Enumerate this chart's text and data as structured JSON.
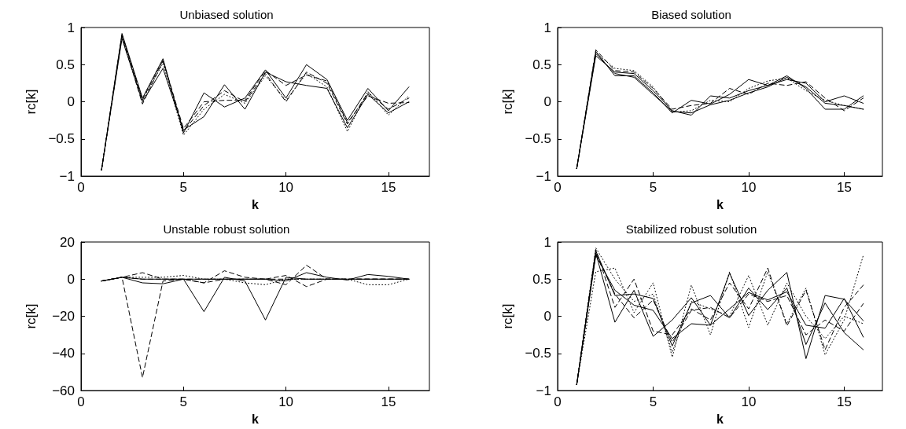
{
  "chart_data": [
    {
      "type": "line",
      "title": "Unbiased solution",
      "xlabel": "k",
      "ylabel": "rc[k]",
      "x": [
        1,
        2,
        3,
        4,
        5,
        6,
        7,
        8,
        9,
        10,
        11,
        12,
        13,
        14,
        15,
        16
      ],
      "xlim": [
        0,
        17
      ],
      "xticks": [
        0,
        5,
        10,
        15
      ],
      "ylim": [
        -1,
        1
      ],
      "yticks": [
        -1,
        -0.5,
        0,
        0.5,
        1
      ],
      "marker": "none",
      "grid": false,
      "series": [
        {
          "color": "#000000",
          "line_style": "solid",
          "values": [
            -0.92,
            0.92,
            0.05,
            0.58,
            -0.42,
            0.12,
            -0.07,
            0.05,
            0.43,
            0.05,
            0.5,
            0.3,
            -0.25,
            0.18,
            -0.12,
            0.2
          ]
        },
        {
          "color": "#000000",
          "line_style": "solid",
          "values": [
            -0.92,
            0.85,
            0.0,
            0.45,
            -0.38,
            -0.2,
            0.23,
            -0.1,
            0.4,
            0.27,
            0.22,
            0.18,
            -0.35,
            0.1,
            -0.15,
            0.0
          ]
        },
        {
          "color": "#000000",
          "line_style": "dashed",
          "values": [
            -0.92,
            0.88,
            -0.03,
            0.55,
            -0.4,
            -0.05,
            0.15,
            0.0,
            0.38,
            0.0,
            0.4,
            0.25,
            -0.3,
            0.12,
            -0.1,
            0.05
          ]
        },
        {
          "color": "#000000",
          "line_style": "dotted",
          "values": [
            -0.92,
            0.9,
            0.02,
            0.52,
            -0.45,
            -0.1,
            0.1,
            -0.02,
            0.35,
            0.02,
            0.38,
            0.2,
            -0.4,
            0.14,
            -0.18,
            0.08
          ]
        },
        {
          "color": "#000000",
          "line_style": "dashed",
          "values": [
            -0.92,
            0.9,
            0.03,
            0.56,
            -0.36,
            0.0,
            0.02,
            0.02,
            0.42,
            0.22,
            0.36,
            0.28,
            -0.28,
            0.08,
            -0.02,
            -0.01
          ]
        }
      ]
    },
    {
      "type": "line",
      "title": "Biased solution",
      "xlabel": "k",
      "ylabel": "rc[k]",
      "x": [
        1,
        2,
        3,
        4,
        5,
        6,
        7,
        8,
        9,
        10,
        11,
        12,
        13,
        14,
        15,
        16
      ],
      "xlim": [
        0,
        17
      ],
      "xticks": [
        0,
        5,
        10,
        15
      ],
      "ylim": [
        -1,
        1
      ],
      "yticks": [
        -1,
        -0.5,
        0,
        0.5,
        1
      ],
      "marker": "none",
      "grid": false,
      "series": [
        {
          "color": "#000000",
          "line_style": "solid",
          "values": [
            -0.9,
            0.68,
            0.35,
            0.35,
            0.12,
            -0.15,
            0.02,
            -0.03,
            0.1,
            0.3,
            0.22,
            0.35,
            0.18,
            -0.1,
            -0.1,
            0.08
          ]
        },
        {
          "color": "#000000",
          "line_style": "solid",
          "values": [
            -0.9,
            0.62,
            0.4,
            0.38,
            0.15,
            -0.12,
            -0.18,
            0.08,
            0.05,
            0.15,
            0.22,
            0.3,
            0.25,
            0.0,
            0.08,
            -0.02
          ]
        },
        {
          "color": "#000000",
          "line_style": "dashed",
          "values": [
            -0.9,
            0.7,
            0.42,
            0.4,
            0.18,
            -0.1,
            -0.05,
            -0.02,
            0.18,
            0.1,
            0.25,
            0.22,
            0.27,
            0.05,
            -0.12,
            0.05
          ]
        },
        {
          "color": "#000000",
          "line_style": "dotted",
          "values": [
            -0.9,
            0.66,
            0.45,
            0.42,
            0.2,
            -0.14,
            -0.12,
            0.02,
            0.0,
            0.18,
            0.28,
            0.32,
            0.15,
            0.02,
            -0.05,
            -0.1
          ]
        },
        {
          "color": "#000000",
          "line_style": "solid",
          "values": [
            -0.9,
            0.65,
            0.38,
            0.33,
            0.1,
            -0.13,
            -0.15,
            -0.04,
            0.02,
            0.12,
            0.2,
            0.33,
            0.2,
            -0.02,
            -0.05,
            -0.1
          ]
        }
      ]
    },
    {
      "type": "line",
      "title": "Unstable robust solution",
      "xlabel": "k",
      "ylabel": "rc[k]",
      "x": [
        1,
        2,
        3,
        4,
        5,
        6,
        7,
        8,
        9,
        10,
        11,
        12,
        13,
        14,
        15,
        16
      ],
      "xlim": [
        0,
        17
      ],
      "xticks": [
        0,
        5,
        10,
        15
      ],
      "ylim": [
        -60,
        20
      ],
      "yticks": [
        -60,
        -40,
        -20,
        0,
        20
      ],
      "marker": "none",
      "grid": false,
      "series": [
        {
          "color": "#000000",
          "line_style": "dashed",
          "values": [
            -1,
            1,
            -53,
            -1,
            0,
            -2,
            0,
            0,
            0,
            0,
            0,
            0,
            0,
            0,
            0,
            0
          ]
        },
        {
          "color": "#000000",
          "line_style": "solid",
          "values": [
            -1,
            1,
            0,
            0,
            0,
            -17.5,
            1,
            -1,
            -22,
            1,
            0,
            0,
            0,
            0,
            0,
            0
          ]
        },
        {
          "color": "#000000",
          "line_style": "solid",
          "values": [
            -1,
            1,
            -2,
            -2.5,
            0,
            0,
            0,
            0,
            0,
            -1,
            3.5,
            1,
            -0.5,
            2.5,
            1.5,
            0
          ]
        },
        {
          "color": "#000000",
          "line_style": "dashed",
          "values": [
            -1,
            1,
            3.5,
            0,
            0,
            -2,
            4.5,
            1,
            0,
            -3,
            7.5,
            0,
            0,
            0,
            0,
            0
          ]
        },
        {
          "color": "#000000",
          "line_style": "dotted",
          "values": [
            -1,
            1,
            1,
            1,
            2,
            0,
            0,
            -2,
            -3,
            0,
            0,
            0,
            0,
            -3,
            -3,
            0
          ]
        },
        {
          "color": "#000000",
          "line_style": "dashed",
          "values": [
            -1,
            1,
            0,
            0,
            0,
            0,
            0,
            0,
            0,
            2,
            -4,
            0,
            0,
            0,
            0,
            0
          ]
        }
      ]
    },
    {
      "type": "line",
      "title": "Stabilized robust solution",
      "xlabel": "k",
      "ylabel": "rc[k]",
      "x": [
        1,
        2,
        3,
        4,
        5,
        6,
        7,
        8,
        9,
        10,
        11,
        12,
        13,
        14,
        15,
        16
      ],
      "xlim": [
        0,
        17
      ],
      "xticks": [
        0,
        5,
        10,
        15
      ],
      "ylim": [
        -1,
        1
      ],
      "yticks": [
        -1,
        -0.5,
        0,
        0.5,
        1
      ],
      "marker": "none",
      "grid": false,
      "series": [
        {
          "color": "#000000",
          "line_style": "solid",
          "values": [
            -0.92,
            0.85,
            -0.08,
            0.35,
            -0.27,
            -0.05,
            0.25,
            -0.12,
            0.58,
            0.01,
            0.35,
            0.59,
            -0.57,
            0.28,
            0.23,
            -0.06
          ]
        },
        {
          "color": "#000000",
          "line_style": "solid",
          "values": [
            -0.92,
            0.88,
            0.28,
            0.3,
            0.24,
            -0.4,
            0.18,
            0.28,
            -0.02,
            0.38,
            0.09,
            0.38,
            -0.38,
            0.18,
            -0.22,
            -0.45
          ]
        },
        {
          "color": "#000000",
          "line_style": "solid",
          "values": [
            -0.92,
            0.82,
            0.35,
            0.15,
            0.08,
            -0.3,
            -0.1,
            -0.12,
            0.1,
            0.32,
            0.22,
            0.33,
            -0.12,
            -0.16,
            0.24,
            -0.28
          ]
        },
        {
          "color": "#000000",
          "line_style": "dashed",
          "values": [
            -0.92,
            0.9,
            0.12,
            0.5,
            -0.2,
            -0.25,
            0.1,
            -0.05,
            0.45,
            0.1,
            0.65,
            -0.13,
            0.35,
            -0.45,
            0.12,
            0.42
          ]
        },
        {
          "color": "#000000",
          "line_style": "dashed",
          "values": [
            -0.92,
            0.85,
            0.3,
            -0.02,
            0.22,
            -0.35,
            0.08,
            0.12,
            -0.02,
            0.3,
            0.2,
            0.28,
            -0.25,
            -0.05,
            -0.2,
            0.17
          ]
        },
        {
          "color": "#000000",
          "line_style": "dotted",
          "values": [
            -0.92,
            0.6,
            0.65,
            0.05,
            0.45,
            -0.55,
            0.42,
            -0.25,
            0.6,
            -0.15,
            0.6,
            -0.1,
            0.38,
            -0.52,
            -0.05,
            0.82
          ]
        },
        {
          "color": "#000000",
          "line_style": "dotted",
          "values": [
            -0.92,
            0.92,
            0.5,
            0.2,
            0.3,
            -0.48,
            0.2,
            0.1,
            0.0,
            0.55,
            -0.12,
            0.45,
            0.0,
            -0.3,
            0.0,
            -0.1
          ]
        }
      ]
    }
  ]
}
